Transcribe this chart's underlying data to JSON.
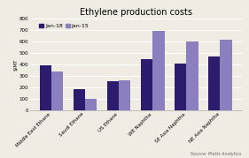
{
  "title": "Ethylene production costs",
  "ylabel": "$/MT",
  "categories": [
    "Middle East Ethane",
    "Saudi Ethane",
    "US Ethane",
    "WE Naphtha",
    "SE Asia Naphtha",
    "NE Asia Naphtha"
  ],
  "jan18_values": [
    395,
    190,
    260,
    450,
    410,
    470
  ],
  "jan15_values": [
    340,
    100,
    265,
    695,
    600,
    615
  ],
  "jan18_color": "#2d1b6e",
  "jan15_color": "#8b7fbf",
  "ylim": [
    0,
    800
  ],
  "yticks": [
    0,
    100,
    200,
    300,
    400,
    500,
    600,
    700,
    800
  ],
  "legend_labels": [
    "Jan-18",
    "Jan-15"
  ],
  "source_text": "Source: Platts Analytics",
  "bg_color": "#f0ece4",
  "grid_color": "#ffffff",
  "title_fontsize": 7,
  "tick_fontsize": 4,
  "ylabel_fontsize": 4,
  "legend_fontsize": 4.5,
  "source_fontsize": 3.5,
  "bar_width": 0.35
}
